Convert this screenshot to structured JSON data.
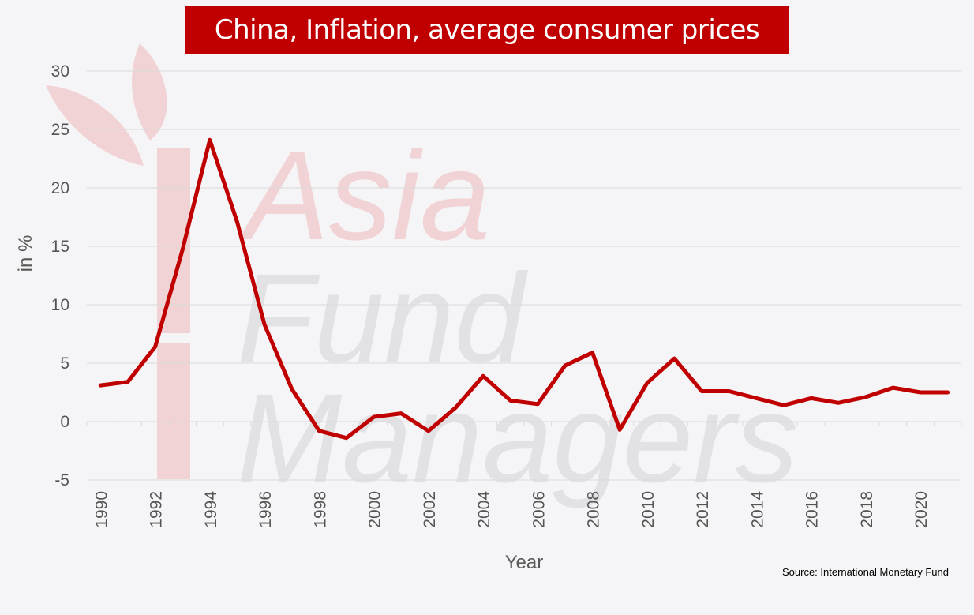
{
  "watermark": {
    "line1": "Asia",
    "line2": "Fund",
    "line3": "Managers"
  },
  "source": "Source: International Monetary Fund",
  "colors": {
    "line": "#c00000",
    "title_bg": "#c00000",
    "grid": "#d9d9d9"
  },
  "chart_data": {
    "type": "line",
    "title": "China, Inflation, average consumer prices",
    "xlabel": "Year",
    "ylabel": "in %",
    "ylim": [
      -5,
      30
    ],
    "yticks": [
      -5,
      0,
      5,
      10,
      15,
      20,
      25,
      30
    ],
    "xticks": [
      "1990",
      "1992",
      "1994",
      "1996",
      "1998",
      "2000",
      "2002",
      "2004",
      "2006",
      "2008",
      "2010",
      "2012",
      "2014",
      "2016",
      "2018",
      "2020"
    ],
    "grid": true,
    "series": [
      {
        "x": [
          1990,
          1991,
          1992,
          1993,
          1994,
          1995,
          1996,
          1997,
          1998,
          1999,
          2000,
          2001,
          2002,
          2003,
          2004,
          2005,
          2006,
          2007,
          2008,
          2009,
          2010,
          2011,
          2012,
          2013,
          2014,
          2015,
          2016,
          2017,
          2018,
          2019,
          2020,
          2021
        ],
        "values": [
          3.1,
          3.4,
          6.4,
          14.7,
          24.1,
          17.1,
          8.3,
          2.8,
          -0.8,
          -1.4,
          0.4,
          0.7,
          -0.8,
          1.2,
          3.9,
          1.8,
          1.5,
          4.8,
          5.9,
          -0.7,
          3.3,
          5.4,
          2.6,
          2.6,
          2.0,
          1.4,
          2.0,
          1.6,
          2.1,
          2.9,
          2.5,
          2.5
        ]
      }
    ]
  }
}
